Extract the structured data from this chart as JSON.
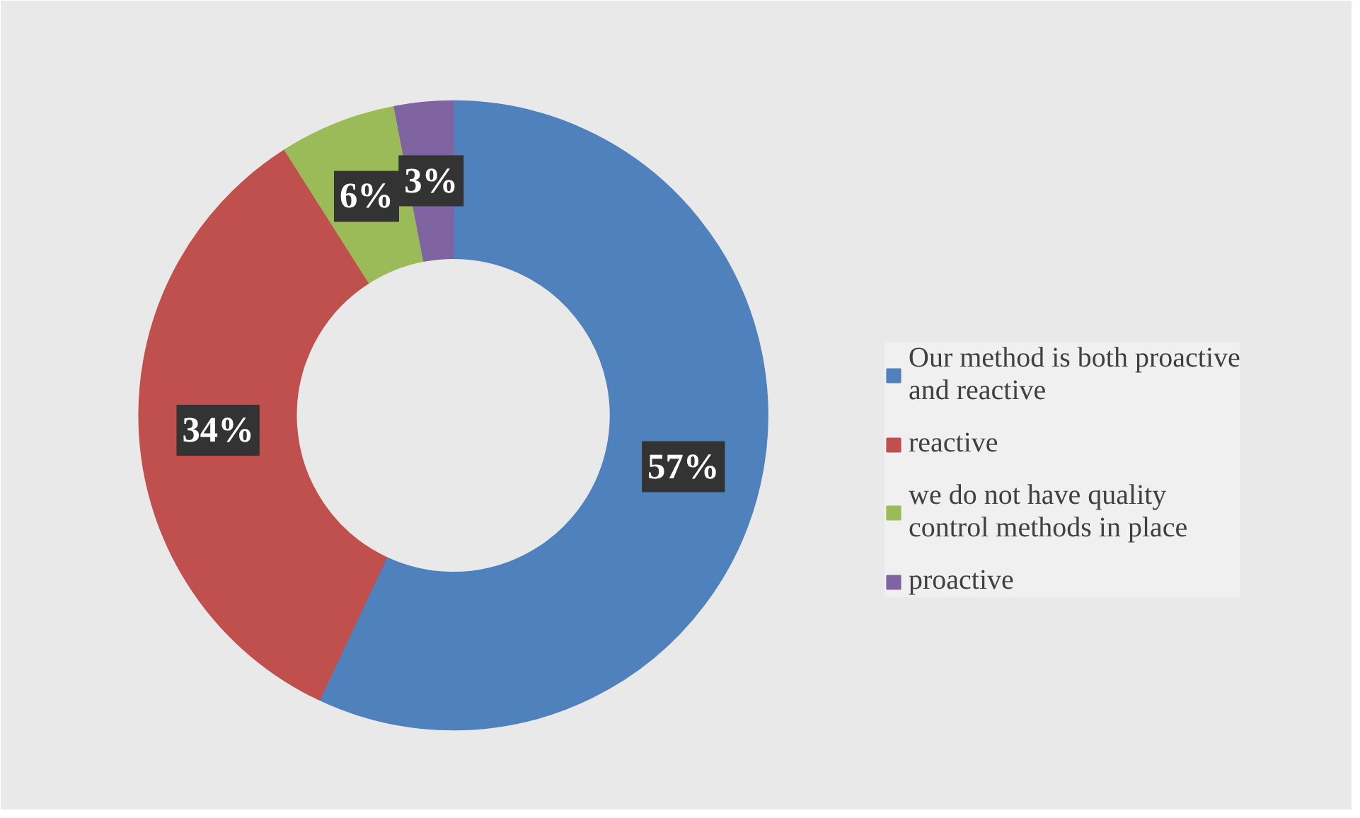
{
  "chart_data": {
    "type": "donut",
    "categories": [
      "Our method is both proactive and reactive",
      "reactive",
      "we do not have quality control methods in place",
      "proactive"
    ],
    "values": [
      57,
      34,
      6,
      3
    ],
    "colors": [
      "#4f81bd",
      "#c0504d",
      "#9bbb59",
      "#8064a2"
    ],
    "value_labels": [
      "57%",
      "34%",
      "6%",
      "3%"
    ],
    "legend": "right"
  }
}
